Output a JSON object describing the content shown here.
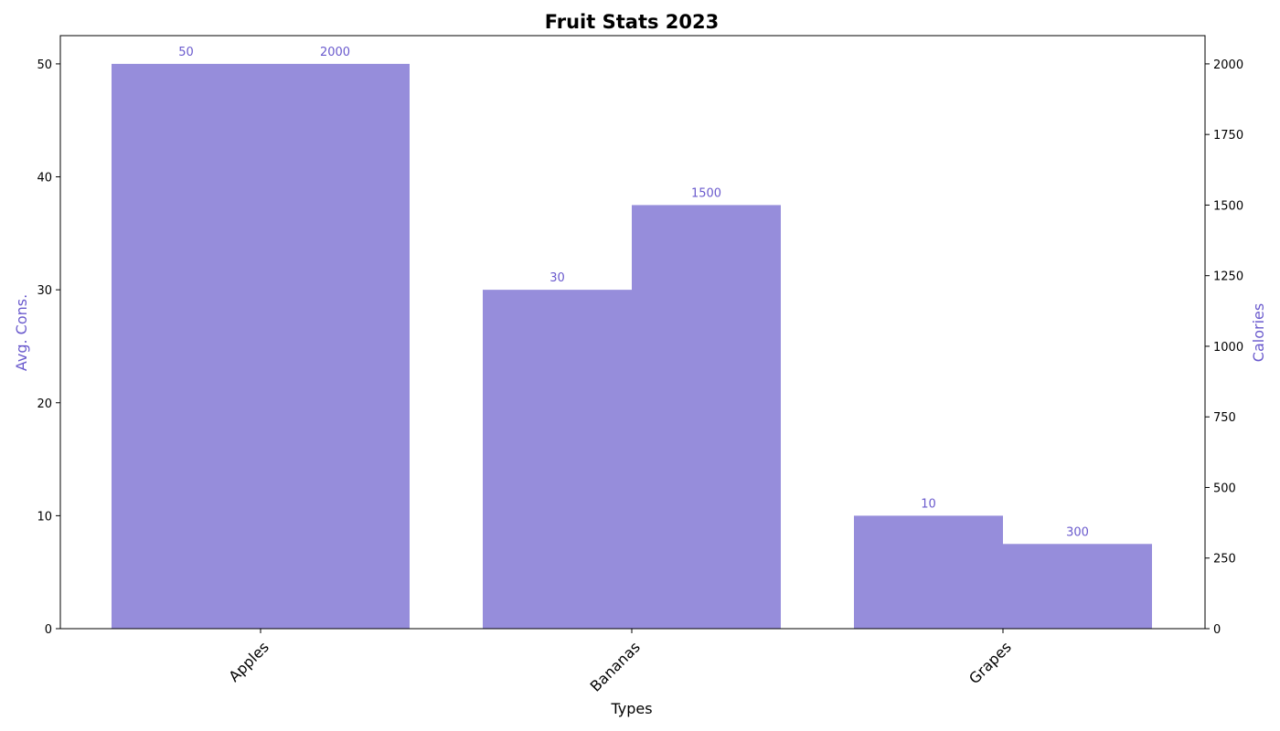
{
  "chart_data": {
    "type": "bar",
    "title": "Fruit Stats 2023",
    "xlabel": "Types",
    "categories": [
      "Apples",
      "Bananas",
      "Grapes"
    ],
    "series": [
      {
        "name": "Avg. Cons.",
        "axis": "left",
        "values": [
          50,
          30,
          10
        ]
      },
      {
        "name": "Calories",
        "axis": "right",
        "values": [
          2000,
          1500,
          300
        ]
      }
    ],
    "y_left": {
      "label": "Avg. Cons.",
      "ylim": [
        0,
        52.5
      ],
      "ticks": [
        0,
        10,
        20,
        30,
        40,
        50
      ]
    },
    "y_right": {
      "label": "Calories",
      "ylim": [
        0,
        2100
      ],
      "ticks": [
        0,
        250,
        500,
        750,
        1000,
        1250,
        1500,
        1750,
        2000
      ]
    },
    "grid": false,
    "legend": "none",
    "colors": {
      "bar": "#968ddb",
      "label": "#6a5acd",
      "axis": "#000000"
    }
  }
}
